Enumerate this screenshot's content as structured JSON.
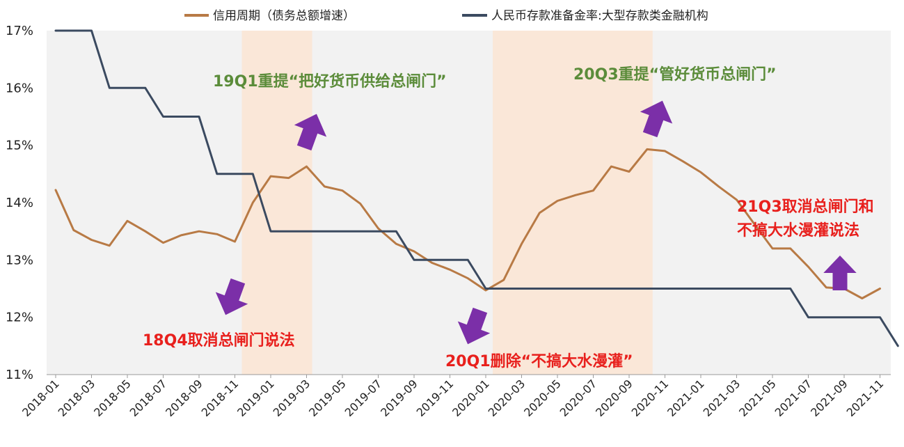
{
  "chart_data": {
    "type": "line",
    "legend": [
      {
        "label": "信用周期（债务总额增速）",
        "color": "#b87a45"
      },
      {
        "label": "人民币存款准备金率:大型存款类金融机构",
        "color": "#3b4a60"
      }
    ],
    "legend_position": "top",
    "grid": false,
    "ylim": [
      11,
      17
    ],
    "yticks": [
      "17%",
      "16%",
      "15%",
      "14%",
      "13%",
      "12%",
      "11%"
    ],
    "ytick_values": [
      17,
      16,
      15,
      14,
      13,
      12,
      11
    ],
    "xticks": [
      "2018-01",
      "2018-03",
      "2018-05",
      "2018-07",
      "2018-09",
      "2018-11",
      "2019-01",
      "2019-03",
      "2019-05",
      "2019-07",
      "2019-09",
      "2019-11",
      "2020-01",
      "2020-03",
      "2020-05",
      "2020-07",
      "2020-09",
      "2020-11",
      "2021-01",
      "2021-03",
      "2021-05",
      "2021-07",
      "2021-09",
      "2021-11"
    ],
    "x": [
      "2018-01",
      "2018-02",
      "2018-03",
      "2018-04",
      "2018-05",
      "2018-06",
      "2018-07",
      "2018-08",
      "2018-09",
      "2018-10",
      "2018-11",
      "2018-12",
      "2019-01",
      "2019-02",
      "2019-03",
      "2019-04",
      "2019-05",
      "2019-06",
      "2019-07",
      "2019-08",
      "2019-09",
      "2019-10",
      "2019-11",
      "2019-12",
      "2020-01",
      "2020-02",
      "2020-03",
      "2020-04",
      "2020-05",
      "2020-06",
      "2020-07",
      "2020-08",
      "2020-09",
      "2020-10",
      "2020-11",
      "2020-12",
      "2021-01",
      "2021-02",
      "2021-03",
      "2021-04",
      "2021-05",
      "2021-06",
      "2021-07",
      "2021-08",
      "2021-09",
      "2021-10",
      "2021-11",
      "2021-12"
    ],
    "series": [
      {
        "name": "信用周期（债务总额增速）",
        "color": "#b87a45",
        "values": [
          14.22,
          13.52,
          13.35,
          13.25,
          13.68,
          13.5,
          13.3,
          13.43,
          13.5,
          13.45,
          13.32,
          14.0,
          14.46,
          14.43,
          14.63,
          14.28,
          14.21,
          13.98,
          13.55,
          13.28,
          13.15,
          12.95,
          12.83,
          12.68,
          12.47,
          12.65,
          13.28,
          13.82,
          14.03,
          14.13,
          14.21,
          14.63,
          14.54,
          14.93,
          14.9,
          14.72,
          14.53,
          14.28,
          14.05,
          13.62,
          13.2,
          13.2,
          12.88,
          12.52,
          12.5,
          12.33,
          12.5,
          null
        ]
      },
      {
        "name": "人民币存款准备金率:大型存款类金融机构",
        "color": "#3b4a60",
        "values": [
          17.0,
          17.0,
          17.0,
          16.0,
          16.0,
          16.0,
          15.5,
          15.5,
          15.5,
          14.5,
          14.5,
          14.5,
          13.5,
          13.5,
          13.5,
          13.5,
          13.5,
          13.5,
          13.5,
          13.5,
          13.0,
          13.0,
          13.0,
          13.0,
          12.5,
          12.5,
          12.5,
          12.5,
          12.5,
          12.5,
          12.5,
          12.5,
          12.5,
          12.5,
          12.5,
          12.5,
          12.5,
          12.5,
          12.5,
          12.5,
          12.5,
          12.5,
          12.0,
          12.0,
          12.0,
          12.0,
          12.0,
          11.5
        ]
      }
    ],
    "shaded_periods": [
      {
        "from": "2018-11",
        "to": "2019-03",
        "color": "#fbe5d3"
      },
      {
        "from": "2020-01",
        "to": "2020-10",
        "color": "#fbe5d3"
      }
    ],
    "plot_background": "#f2f2f2",
    "annotations": [
      {
        "text": "19Q1重提“把好货币供给总闸门”",
        "color": "#5b8c3a",
        "arrow": "up"
      },
      {
        "text": "20Q3重提“管好货币总闸门”",
        "color": "#5b8c3a",
        "arrow": "up"
      },
      {
        "text": "18Q4取消总闸门说法",
        "color": "#e8201d",
        "arrow": "down"
      },
      {
        "text": "20Q1删除“不搞大水漫灌”",
        "color": "#e8201d",
        "arrow": "down"
      },
      {
        "text": "21Q3取消总闸门和",
        "color": "#e8201d",
        "arrow": "up"
      },
      {
        "text": "不搞大水漫灌说法",
        "color": "#e8201d",
        "arrow": null
      }
    ],
    "arrow_color": "#7b2fa8"
  }
}
